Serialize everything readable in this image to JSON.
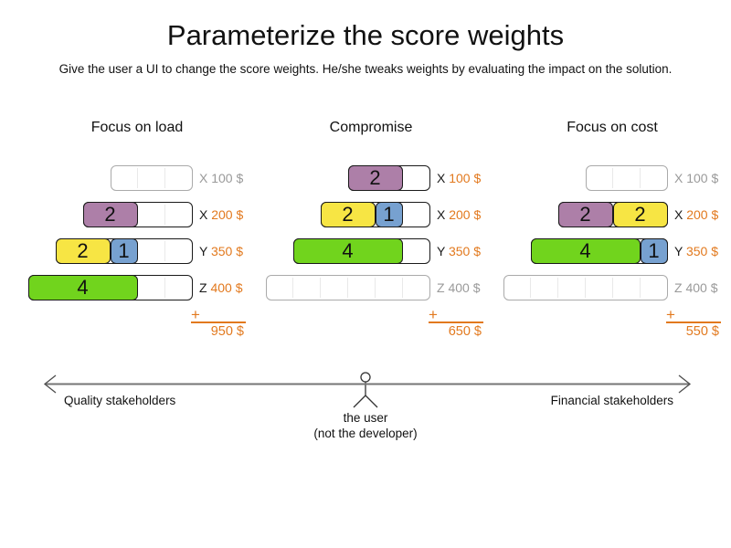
{
  "page": {
    "title": "Parameterize the score weights",
    "subtitle": "Give the user a UI to change the score weights. He/she tweaks weights by evaluating the impact on the solution."
  },
  "colors": {
    "purple": "#ad7fa8",
    "yellow": "#f7e544",
    "blue": "#77a1d0",
    "green": "#71d41d",
    "orange": "#e2791e",
    "unused_text": "#9a9a9a",
    "unused_border": "#aaaaaa",
    "used_border": "#1a1a1a",
    "gridline": "#e9e9e9",
    "axis_line": "#757575"
  },
  "sum_plus": "+",
  "columns": [
    {
      "title": "Focus on load",
      "total": "950 $",
      "rows": [
        {
          "computer": "X",
          "price": "100 $",
          "capacity": 3,
          "used": false,
          "segments": []
        },
        {
          "computer": "X",
          "price": "200 $",
          "capacity": 4,
          "used": true,
          "segments": [
            {
              "value": 2,
              "color": "purple"
            }
          ]
        },
        {
          "computer": "Y",
          "price": "350 $",
          "capacity": 5,
          "used": true,
          "segments": [
            {
              "value": 2,
              "color": "yellow"
            },
            {
              "value": 1,
              "color": "blue"
            }
          ]
        },
        {
          "computer": "Z",
          "price": "400 $",
          "capacity": 6,
          "used": true,
          "segments": [
            {
              "value": 4,
              "color": "green"
            }
          ]
        }
      ]
    },
    {
      "title": "Compromise",
      "total": "650 $",
      "rows": [
        {
          "computer": "X",
          "price": "100 $",
          "capacity": 3,
          "used": true,
          "segments": [
            {
              "value": 2,
              "color": "purple"
            }
          ]
        },
        {
          "computer": "X",
          "price": "200 $",
          "capacity": 4,
          "used": true,
          "segments": [
            {
              "value": 2,
              "color": "yellow"
            },
            {
              "value": 1,
              "color": "blue"
            }
          ]
        },
        {
          "computer": "Y",
          "price": "350 $",
          "capacity": 5,
          "used": true,
          "segments": [
            {
              "value": 4,
              "color": "green"
            }
          ]
        },
        {
          "computer": "Z",
          "price": "400 $",
          "capacity": 6,
          "used": false,
          "segments": []
        }
      ]
    },
    {
      "title": "Focus on cost",
      "total": "550 $",
      "rows": [
        {
          "computer": "X",
          "price": "100 $",
          "capacity": 3,
          "used": false,
          "segments": []
        },
        {
          "computer": "X",
          "price": "200 $",
          "capacity": 4,
          "used": true,
          "segments": [
            {
              "value": 2,
              "color": "purple"
            },
            {
              "value": 2,
              "color": "yellow"
            }
          ]
        },
        {
          "computer": "Y",
          "price": "350 $",
          "capacity": 5,
          "used": true,
          "segments": [
            {
              "value": 4,
              "color": "green"
            },
            {
              "value": 1,
              "color": "blue"
            }
          ]
        },
        {
          "computer": "Z",
          "price": "400 $",
          "capacity": 6,
          "used": false,
          "segments": []
        }
      ]
    }
  ],
  "axis": {
    "left_label": "Quality stakeholders",
    "right_label": "Financial stakeholders",
    "actor_caption_line1": "the user",
    "actor_caption_line2": "(not the developer)"
  }
}
